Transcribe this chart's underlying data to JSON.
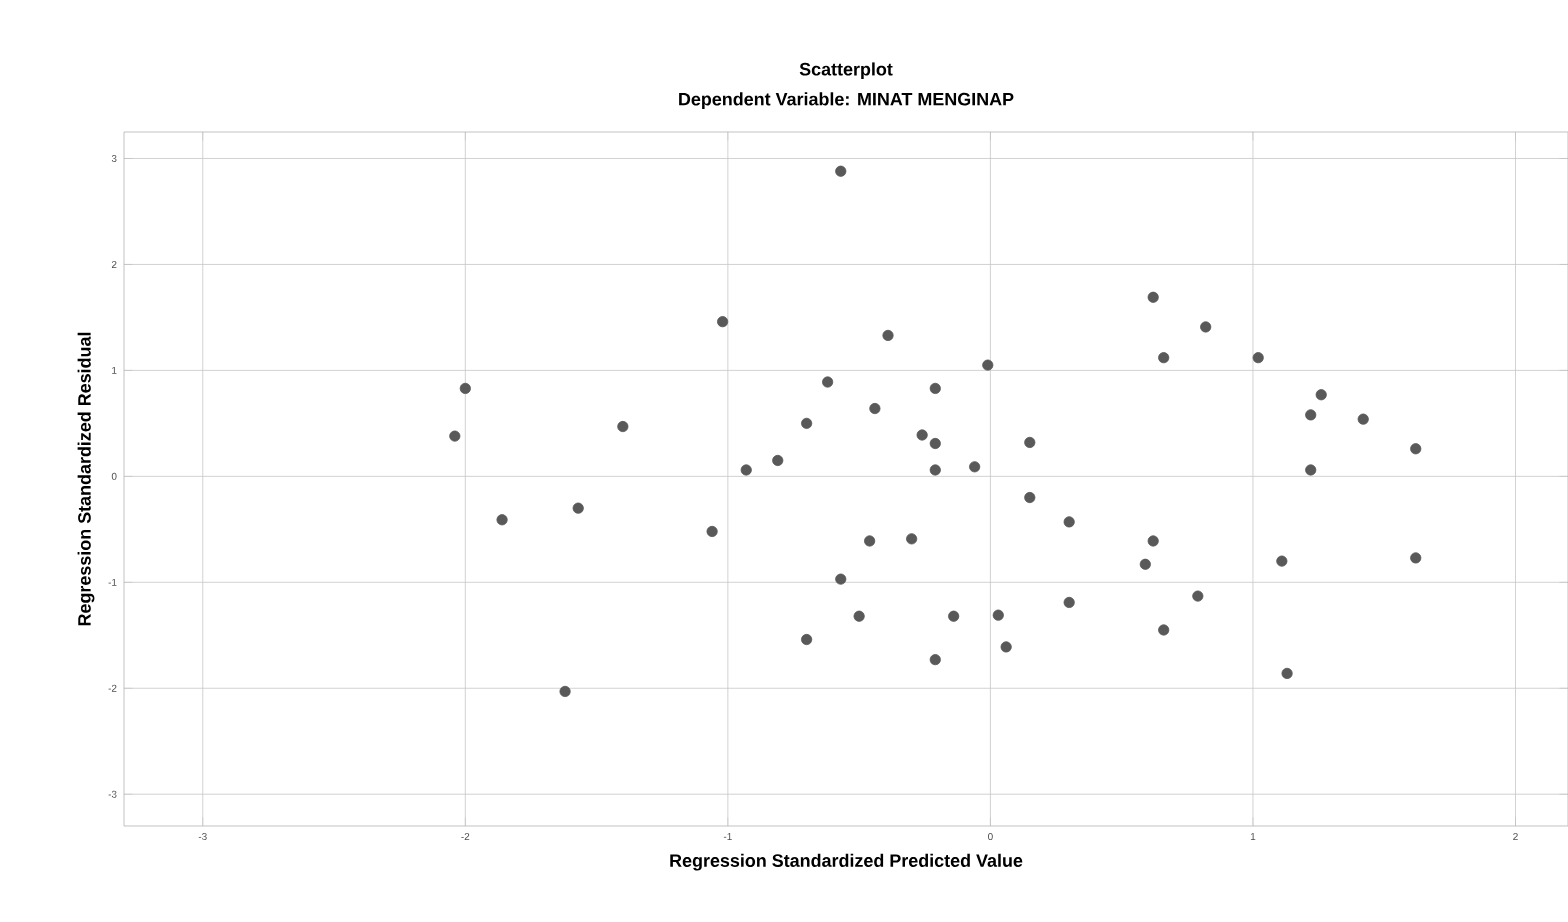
{
  "chart_data": {
    "type": "scatter",
    "title": "Scatterplot",
    "subtitle": "Dependent Variable: MINAT MENGINAP",
    "xlabel": "Regression Standardized Predicted Value",
    "ylabel": "Regression Standardized Residual",
    "xlim": [
      -3.3,
      2.2
    ],
    "ylim": [
      -3.3,
      3.25
    ],
    "xticks": [
      -3,
      -2,
      -1,
      0,
      1,
      2
    ],
    "yticks": [
      -3,
      -2,
      -1,
      0,
      1,
      2,
      3
    ],
    "grid": true,
    "marker": "circle",
    "series": [
      {
        "color": "#595959",
        "x": [
          -2.04,
          -2.0,
          -1.86,
          -1.57,
          -1.62,
          -1.4,
          -1.02,
          -1.06,
          -0.93,
          -0.81,
          -0.7,
          -0.7,
          -0.57,
          -0.39,
          -0.62,
          -0.44,
          -0.21,
          -0.26,
          -0.21,
          -0.21,
          -0.01,
          -0.06,
          0.15,
          0.15,
          0.3,
          -0.46,
          -0.3,
          -0.57,
          -0.5,
          -0.14,
          0.03,
          0.06,
          -0.21,
          0.3,
          0.62,
          0.82,
          0.66,
          1.02,
          1.26,
          1.22,
          1.42,
          1.62,
          1.22,
          0.62,
          0.59,
          0.79,
          0.66,
          1.11,
          1.62,
          1.13
        ],
        "values": [
          0.38,
          0.83,
          -0.41,
          -0.3,
          -2.03,
          0.47,
          1.46,
          -0.52,
          0.06,
          0.15,
          0.5,
          -1.54,
          2.88,
          1.33,
          0.89,
          0.64,
          0.83,
          0.39,
          0.31,
          0.06,
          1.05,
          0.09,
          0.32,
          -0.2,
          -0.43,
          -0.61,
          -0.59,
          -0.97,
          -1.32,
          -1.32,
          -1.31,
          -1.61,
          -1.73,
          -1.19,
          1.69,
          1.41,
          1.12,
          1.12,
          0.77,
          0.58,
          0.54,
          0.26,
          0.06,
          -0.61,
          -0.83,
          -1.13,
          -1.45,
          -0.8,
          -0.77,
          -1.86
        ]
      }
    ]
  }
}
